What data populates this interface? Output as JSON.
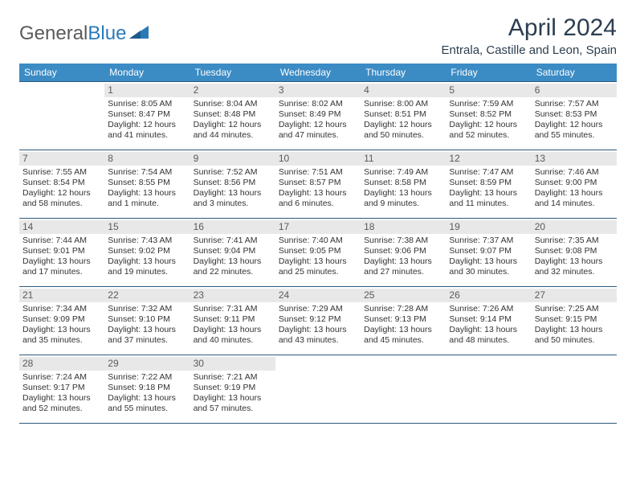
{
  "logo": {
    "text1": "General",
    "text2": "Blue"
  },
  "title": "April 2024",
  "location": "Entrala, Castille and Leon, Spain",
  "dow_header_bg": "#3b8bc4",
  "border_color": "#2c5a7a",
  "daynum_bg": "#e8e8e8",
  "days_of_week": [
    "Sunday",
    "Monday",
    "Tuesday",
    "Wednesday",
    "Thursday",
    "Friday",
    "Saturday"
  ],
  "weeks": [
    [
      {
        "num": "",
        "sunrise": "",
        "sunset": "",
        "daylight": ""
      },
      {
        "num": "1",
        "sunrise": "Sunrise: 8:05 AM",
        "sunset": "Sunset: 8:47 PM",
        "daylight": "Daylight: 12 hours and 41 minutes."
      },
      {
        "num": "2",
        "sunrise": "Sunrise: 8:04 AM",
        "sunset": "Sunset: 8:48 PM",
        "daylight": "Daylight: 12 hours and 44 minutes."
      },
      {
        "num": "3",
        "sunrise": "Sunrise: 8:02 AM",
        "sunset": "Sunset: 8:49 PM",
        "daylight": "Daylight: 12 hours and 47 minutes."
      },
      {
        "num": "4",
        "sunrise": "Sunrise: 8:00 AM",
        "sunset": "Sunset: 8:51 PM",
        "daylight": "Daylight: 12 hours and 50 minutes."
      },
      {
        "num": "5",
        "sunrise": "Sunrise: 7:59 AM",
        "sunset": "Sunset: 8:52 PM",
        "daylight": "Daylight: 12 hours and 52 minutes."
      },
      {
        "num": "6",
        "sunrise": "Sunrise: 7:57 AM",
        "sunset": "Sunset: 8:53 PM",
        "daylight": "Daylight: 12 hours and 55 minutes."
      }
    ],
    [
      {
        "num": "7",
        "sunrise": "Sunrise: 7:55 AM",
        "sunset": "Sunset: 8:54 PM",
        "daylight": "Daylight: 12 hours and 58 minutes."
      },
      {
        "num": "8",
        "sunrise": "Sunrise: 7:54 AM",
        "sunset": "Sunset: 8:55 PM",
        "daylight": "Daylight: 13 hours and 1 minute."
      },
      {
        "num": "9",
        "sunrise": "Sunrise: 7:52 AM",
        "sunset": "Sunset: 8:56 PM",
        "daylight": "Daylight: 13 hours and 3 minutes."
      },
      {
        "num": "10",
        "sunrise": "Sunrise: 7:51 AM",
        "sunset": "Sunset: 8:57 PM",
        "daylight": "Daylight: 13 hours and 6 minutes."
      },
      {
        "num": "11",
        "sunrise": "Sunrise: 7:49 AM",
        "sunset": "Sunset: 8:58 PM",
        "daylight": "Daylight: 13 hours and 9 minutes."
      },
      {
        "num": "12",
        "sunrise": "Sunrise: 7:47 AM",
        "sunset": "Sunset: 8:59 PM",
        "daylight": "Daylight: 13 hours and 11 minutes."
      },
      {
        "num": "13",
        "sunrise": "Sunrise: 7:46 AM",
        "sunset": "Sunset: 9:00 PM",
        "daylight": "Daylight: 13 hours and 14 minutes."
      }
    ],
    [
      {
        "num": "14",
        "sunrise": "Sunrise: 7:44 AM",
        "sunset": "Sunset: 9:01 PM",
        "daylight": "Daylight: 13 hours and 17 minutes."
      },
      {
        "num": "15",
        "sunrise": "Sunrise: 7:43 AM",
        "sunset": "Sunset: 9:02 PM",
        "daylight": "Daylight: 13 hours and 19 minutes."
      },
      {
        "num": "16",
        "sunrise": "Sunrise: 7:41 AM",
        "sunset": "Sunset: 9:04 PM",
        "daylight": "Daylight: 13 hours and 22 minutes."
      },
      {
        "num": "17",
        "sunrise": "Sunrise: 7:40 AM",
        "sunset": "Sunset: 9:05 PM",
        "daylight": "Daylight: 13 hours and 25 minutes."
      },
      {
        "num": "18",
        "sunrise": "Sunrise: 7:38 AM",
        "sunset": "Sunset: 9:06 PM",
        "daylight": "Daylight: 13 hours and 27 minutes."
      },
      {
        "num": "19",
        "sunrise": "Sunrise: 7:37 AM",
        "sunset": "Sunset: 9:07 PM",
        "daylight": "Daylight: 13 hours and 30 minutes."
      },
      {
        "num": "20",
        "sunrise": "Sunrise: 7:35 AM",
        "sunset": "Sunset: 9:08 PM",
        "daylight": "Daylight: 13 hours and 32 minutes."
      }
    ],
    [
      {
        "num": "21",
        "sunrise": "Sunrise: 7:34 AM",
        "sunset": "Sunset: 9:09 PM",
        "daylight": "Daylight: 13 hours and 35 minutes."
      },
      {
        "num": "22",
        "sunrise": "Sunrise: 7:32 AM",
        "sunset": "Sunset: 9:10 PM",
        "daylight": "Daylight: 13 hours and 37 minutes."
      },
      {
        "num": "23",
        "sunrise": "Sunrise: 7:31 AM",
        "sunset": "Sunset: 9:11 PM",
        "daylight": "Daylight: 13 hours and 40 minutes."
      },
      {
        "num": "24",
        "sunrise": "Sunrise: 7:29 AM",
        "sunset": "Sunset: 9:12 PM",
        "daylight": "Daylight: 13 hours and 43 minutes."
      },
      {
        "num": "25",
        "sunrise": "Sunrise: 7:28 AM",
        "sunset": "Sunset: 9:13 PM",
        "daylight": "Daylight: 13 hours and 45 minutes."
      },
      {
        "num": "26",
        "sunrise": "Sunrise: 7:26 AM",
        "sunset": "Sunset: 9:14 PM",
        "daylight": "Daylight: 13 hours and 48 minutes."
      },
      {
        "num": "27",
        "sunrise": "Sunrise: 7:25 AM",
        "sunset": "Sunset: 9:15 PM",
        "daylight": "Daylight: 13 hours and 50 minutes."
      }
    ],
    [
      {
        "num": "28",
        "sunrise": "Sunrise: 7:24 AM",
        "sunset": "Sunset: 9:17 PM",
        "daylight": "Daylight: 13 hours and 52 minutes."
      },
      {
        "num": "29",
        "sunrise": "Sunrise: 7:22 AM",
        "sunset": "Sunset: 9:18 PM",
        "daylight": "Daylight: 13 hours and 55 minutes."
      },
      {
        "num": "30",
        "sunrise": "Sunrise: 7:21 AM",
        "sunset": "Sunset: 9:19 PM",
        "daylight": "Daylight: 13 hours and 57 minutes."
      },
      {
        "num": "",
        "sunrise": "",
        "sunset": "",
        "daylight": ""
      },
      {
        "num": "",
        "sunrise": "",
        "sunset": "",
        "daylight": ""
      },
      {
        "num": "",
        "sunrise": "",
        "sunset": "",
        "daylight": ""
      },
      {
        "num": "",
        "sunrise": "",
        "sunset": "",
        "daylight": ""
      }
    ]
  ]
}
